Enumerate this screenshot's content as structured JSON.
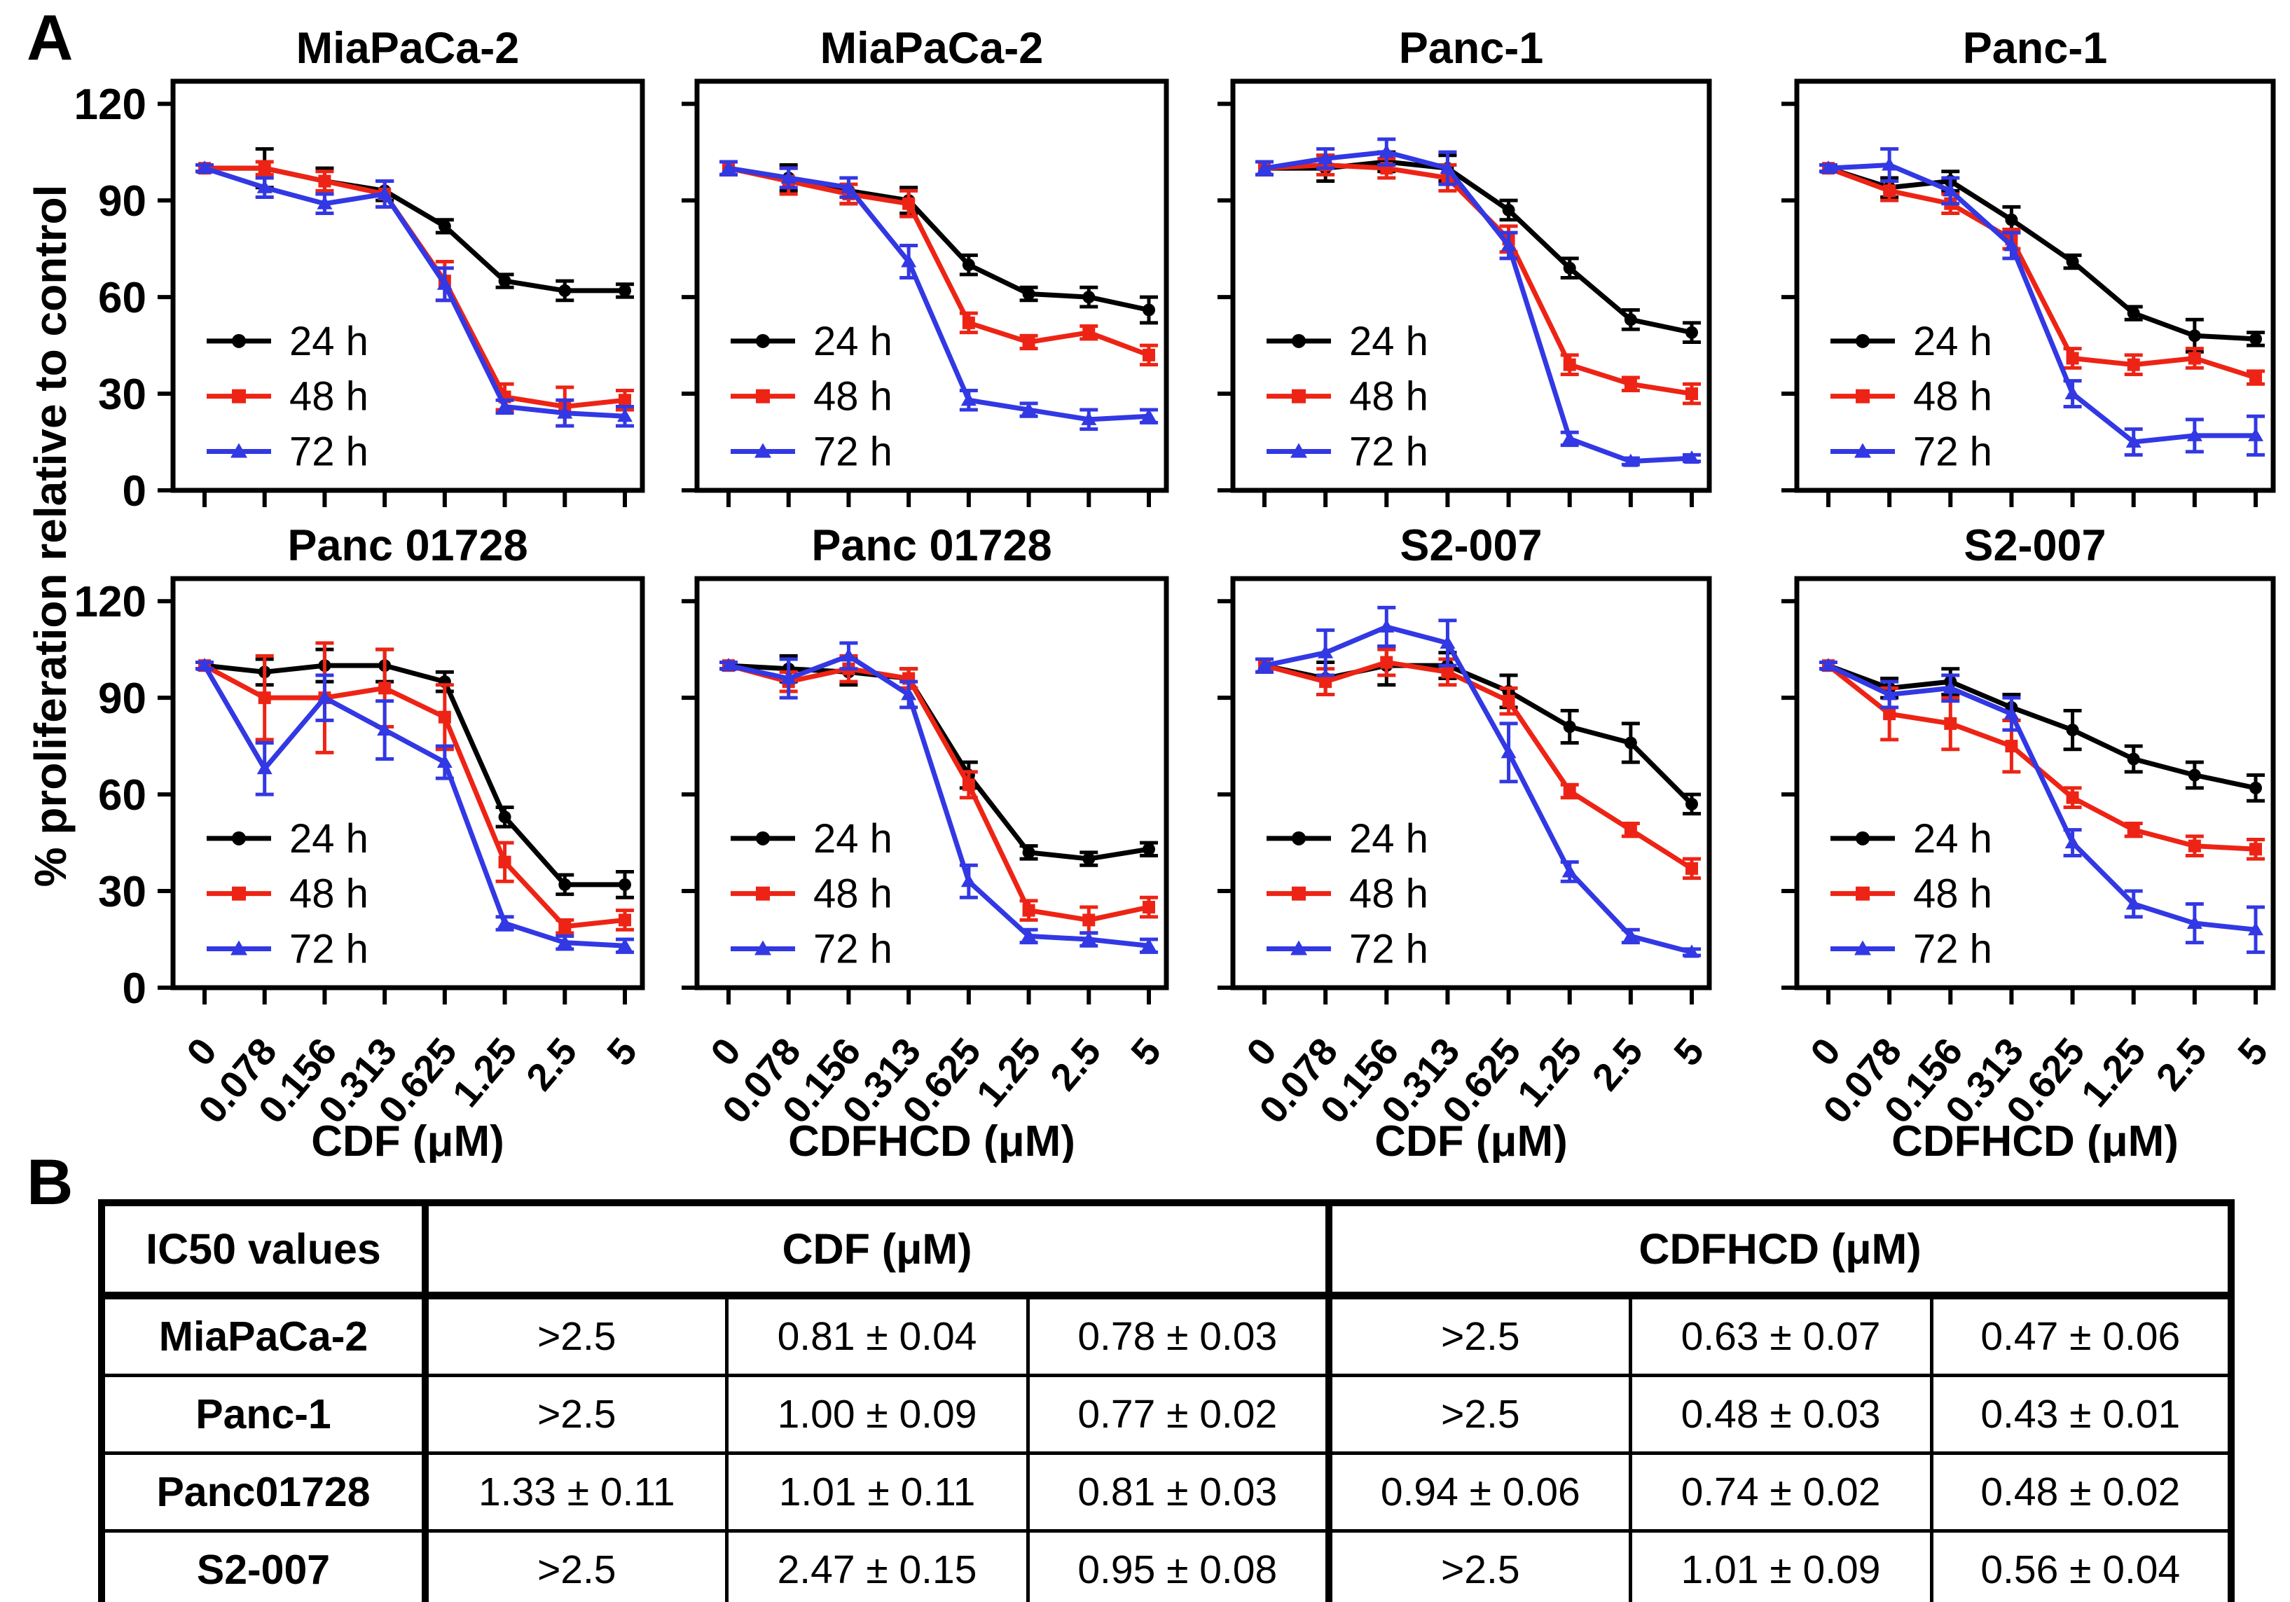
{
  "figure": {
    "panel_a_label": "A",
    "panel_b_label": "B",
    "y_axis_label": "% proliferation relative to control"
  },
  "legend": [
    "24 h",
    "48 h",
    "72 h"
  ],
  "colors": {
    "series_24h": "#000000",
    "series_48h": "#ED2415",
    "series_72h": "#3238E3"
  },
  "chart_data": [
    {
      "type": "line",
      "title": "MiaPaCa-2",
      "xlabel": "CDF (μM)",
      "categories": [
        "0",
        "0.078",
        "0.156",
        "0.313",
        "0.625",
        "1.25",
        "2.5",
        "5"
      ],
      "ylim": [
        0,
        127
      ],
      "yticks": [
        0,
        30,
        60,
        90,
        120
      ],
      "show_ytick_labels": true,
      "show_xtick_labels": false,
      "series": [
        {
          "name": "24 h",
          "color": "#000000",
          "marker": "circle",
          "values": [
            100,
            100,
            96,
            93,
            82,
            65,
            62,
            62
          ],
          "errors": [
            1,
            6,
            4,
            3,
            2,
            2,
            3,
            2
          ]
        },
        {
          "name": "48 h",
          "color": "#ED2415",
          "marker": "square",
          "values": [
            100,
            100,
            96,
            92,
            65,
            29,
            26,
            28
          ],
          "errors": [
            1,
            2,
            3,
            4,
            6,
            4,
            6,
            3
          ]
        },
        {
          "name": "72 h",
          "color": "#3238E3",
          "marker": "triangle",
          "values": [
            100,
            94,
            89,
            92,
            64,
            26,
            24,
            23
          ],
          "errors": [
            1,
            3,
            3,
            4,
            5,
            2,
            4,
            3
          ]
        }
      ]
    },
    {
      "type": "line",
      "title": "MiaPaCa-2",
      "xlabel": "CDFHCD (μM)",
      "categories": [
        "0",
        "0.078",
        "0.156",
        "0.313",
        "0.625",
        "1.25",
        "2.5",
        "5"
      ],
      "ylim": [
        0,
        127
      ],
      "yticks": [
        0,
        30,
        60,
        90,
        120
      ],
      "show_ytick_labels": false,
      "show_xtick_labels": false,
      "series": [
        {
          "name": "24 h",
          "color": "#000000",
          "marker": "circle",
          "values": [
            100,
            97,
            93,
            90,
            70,
            61,
            60,
            56
          ],
          "errors": [
            2,
            4,
            4,
            4,
            3,
            2,
            3,
            4
          ]
        },
        {
          "name": "48 h",
          "color": "#ED2415",
          "marker": "square",
          "values": [
            100,
            96,
            92,
            89,
            52,
            46,
            49,
            42
          ],
          "errors": [
            2,
            4,
            3,
            4,
            3,
            2,
            2,
            3
          ]
        },
        {
          "name": "72 h",
          "color": "#3238E3",
          "marker": "triangle",
          "values": [
            100,
            97,
            94,
            71,
            28,
            25,
            22,
            23
          ],
          "errors": [
            2,
            3,
            3,
            5,
            3,
            2,
            3,
            2
          ]
        }
      ]
    },
    {
      "type": "line",
      "title": "Panc-1",
      "xlabel": "CDF (μM)",
      "categories": [
        "0",
        "0.078",
        "0.156",
        "0.313",
        "0.625",
        "1.25",
        "2.5",
        "5"
      ],
      "ylim": [
        0,
        127
      ],
      "yticks": [
        0,
        30,
        60,
        90,
        120
      ],
      "show_ytick_labels": false,
      "show_xtick_labels": false,
      "series": [
        {
          "name": "24 h",
          "color": "#000000",
          "marker": "circle",
          "values": [
            100,
            100,
            102,
            100,
            87,
            69,
            53,
            49
          ],
          "errors": [
            2,
            4,
            3,
            4,
            3,
            3,
            3,
            3
          ]
        },
        {
          "name": "48 h",
          "color": "#ED2415",
          "marker": "square",
          "values": [
            100,
            101,
            100,
            97,
            78,
            39,
            33,
            30
          ],
          "errors": [
            2,
            3,
            3,
            4,
            4,
            3,
            2,
            3
          ]
        },
        {
          "name": "72 h",
          "color": "#3238E3",
          "marker": "triangle",
          "values": [
            100,
            103,
            105,
            100,
            76,
            16,
            9,
            10
          ],
          "errors": [
            2,
            3,
            4,
            5,
            4,
            2,
            1,
            1
          ]
        }
      ]
    },
    {
      "type": "line",
      "title": "Panc-1",
      "xlabel": "CDFHCD (μM)",
      "categories": [
        "0",
        "0.078",
        "0.156",
        "0.313",
        "0.625",
        "1.25",
        "2.5",
        "5"
      ],
      "ylim": [
        0,
        127
      ],
      "yticks": [
        0,
        30,
        60,
        90,
        120
      ],
      "show_ytick_labels": false,
      "show_xtick_labels": false,
      "series": [
        {
          "name": "24 h",
          "color": "#000000",
          "marker": "circle",
          "values": [
            100,
            94,
            96,
            84,
            71,
            55,
            48,
            47
          ],
          "errors": [
            1,
            3,
            3,
            4,
            2,
            2,
            5,
            2
          ]
        },
        {
          "name": "48 h",
          "color": "#ED2415",
          "marker": "square",
          "values": [
            100,
            93,
            89,
            78,
            41,
            39,
            41,
            35
          ],
          "errors": [
            1,
            3,
            3,
            3,
            3,
            3,
            3,
            2
          ]
        },
        {
          "name": "72 h",
          "color": "#3238E3",
          "marker": "triangle",
          "values": [
            100,
            101,
            93,
            76,
            30,
            15,
            17,
            17
          ],
          "errors": [
            1,
            5,
            4,
            4,
            4,
            4,
            5,
            6
          ]
        }
      ]
    },
    {
      "type": "line",
      "title": "Panc 01728",
      "xlabel": "CDF (μM)",
      "categories": [
        "0",
        "0.078",
        "0.156",
        "0.313",
        "0.625",
        "1.25",
        "2.5",
        "5"
      ],
      "ylim": [
        0,
        127
      ],
      "yticks": [
        0,
        30,
        60,
        90,
        120
      ],
      "show_ytick_labels": true,
      "show_xtick_labels": true,
      "series": [
        {
          "name": "24 h",
          "color": "#000000",
          "marker": "circle",
          "values": [
            100,
            98,
            100,
            100,
            95,
            53,
            32,
            32
          ],
          "errors": [
            1,
            4,
            5,
            5,
            3,
            3,
            3,
            4
          ]
        },
        {
          "name": "48 h",
          "color": "#ED2415",
          "marker": "square",
          "values": [
            100,
            90,
            90,
            93,
            84,
            39,
            19,
            21
          ],
          "errors": [
            1,
            13,
            17,
            12,
            10,
            6,
            2,
            3
          ]
        },
        {
          "name": "72 h",
          "color": "#3238E3",
          "marker": "triangle",
          "values": [
            100,
            68,
            90,
            80,
            70,
            20,
            14,
            13
          ],
          "errors": [
            1,
            8,
            7,
            9,
            5,
            2,
            2,
            2
          ]
        }
      ]
    },
    {
      "type": "line",
      "title": "Panc 01728",
      "xlabel": "CDFHCD (μM)",
      "categories": [
        "0",
        "0.078",
        "0.156",
        "0.313",
        "0.625",
        "1.25",
        "2.5",
        "5"
      ],
      "ylim": [
        0,
        127
      ],
      "yticks": [
        0,
        30,
        60,
        90,
        120
      ],
      "show_ytick_labels": false,
      "show_xtick_labels": true,
      "series": [
        {
          "name": "24 h",
          "color": "#000000",
          "marker": "circle",
          "values": [
            100,
            99,
            98,
            96,
            66,
            42,
            40,
            43
          ],
          "errors": [
            1,
            4,
            4,
            3,
            4,
            2,
            2,
            2
          ]
        },
        {
          "name": "48 h",
          "color": "#ED2415",
          "marker": "square",
          "values": [
            100,
            95,
            99,
            96,
            63,
            24,
            21,
            25
          ],
          "errors": [
            1,
            3,
            4,
            3,
            4,
            3,
            4,
            3
          ]
        },
        {
          "name": "72 h",
          "color": "#3238E3",
          "marker": "triangle",
          "values": [
            100,
            96,
            103,
            91,
            33,
            16,
            15,
            13
          ],
          "errors": [
            1,
            6,
            4,
            4,
            5,
            2,
            2,
            2
          ]
        }
      ]
    },
    {
      "type": "line",
      "title": "S2-007",
      "xlabel": "CDF (μM)",
      "categories": [
        "0",
        "0.078",
        "0.156",
        "0.313",
        "0.625",
        "1.25",
        "2.5",
        "5"
      ],
      "ylim": [
        0,
        127
      ],
      "yticks": [
        0,
        30,
        60,
        90,
        120
      ],
      "show_ytick_labels": false,
      "show_xtick_labels": true,
      "series": [
        {
          "name": "24 h",
          "color": "#000000",
          "marker": "circle",
          "values": [
            100,
            96,
            100,
            100,
            92,
            81,
            76,
            57
          ],
          "errors": [
            2,
            5,
            6,
            4,
            5,
            5,
            6,
            3
          ]
        },
        {
          "name": "48 h",
          "color": "#ED2415",
          "marker": "square",
          "values": [
            100,
            95,
            101,
            98,
            89,
            61,
            49,
            37
          ],
          "errors": [
            2,
            4,
            4,
            4,
            4,
            2,
            2,
            3
          ]
        },
        {
          "name": "72 h",
          "color": "#3238E3",
          "marker": "triangle",
          "values": [
            100,
            104,
            112,
            107,
            73,
            36,
            16,
            11
          ],
          "errors": [
            2,
            7,
            6,
            7,
            9,
            3,
            2,
            1
          ]
        }
      ]
    },
    {
      "type": "line",
      "title": "S2-007",
      "xlabel": "CDFHCD (μM)",
      "categories": [
        "0",
        "0.078",
        "0.156",
        "0.313",
        "0.625",
        "1.25",
        "2.5",
        "5"
      ],
      "ylim": [
        0,
        127
      ],
      "yticks": [
        0,
        30,
        60,
        90,
        120
      ],
      "show_ytick_labels": false,
      "show_xtick_labels": true,
      "series": [
        {
          "name": "24 h",
          "color": "#000000",
          "marker": "circle",
          "values": [
            100,
            93,
            95,
            87,
            80,
            71,
            66,
            62
          ],
          "errors": [
            1,
            3,
            4,
            4,
            6,
            4,
            4,
            4
          ]
        },
        {
          "name": "48 h",
          "color": "#ED2415",
          "marker": "square",
          "values": [
            100,
            85,
            82,
            75,
            59,
            49,
            44,
            43
          ],
          "errors": [
            1,
            8,
            8,
            8,
            3,
            2,
            3,
            3
          ]
        },
        {
          "name": "72 h",
          "color": "#3238E3",
          "marker": "triangle",
          "values": [
            100,
            91,
            93,
            85,
            45,
            26,
            20,
            18
          ],
          "errors": [
            1,
            4,
            4,
            5,
            4,
            4,
            6,
            7
          ]
        }
      ]
    }
  ],
  "table": {
    "corner_header": "IC50 values",
    "group_headers": [
      "CDF (μM)",
      "CDFHCD (μM)"
    ],
    "rows": [
      {
        "label": "MiaPaCa-2",
        "values": [
          ">2.5",
          "0.81 ± 0.04",
          "0.78 ± 0.03",
          ">2.5",
          "0.63 ± 0.07",
          "0.47 ± 0.06"
        ]
      },
      {
        "label": "Panc-1",
        "values": [
          ">2.5",
          "1.00 ± 0.09",
          "0.77 ± 0.02",
          ">2.5",
          "0.48 ± 0.03",
          "0.43 ± 0.01"
        ]
      },
      {
        "label": "Panc01728",
        "values": [
          "1.33 ± 0.11",
          "1.01 ± 0.11",
          "0.81 ± 0.03",
          "0.94 ± 0.06",
          "0.74 ± 0.02",
          "0.48 ± 0.02"
        ]
      },
      {
        "label": "S2-007",
        "values": [
          ">2.5",
          "2.47 ± 0.15",
          "0.95 ± 0.08",
          ">2.5",
          "1.01 ± 0.09",
          "0.56 ± 0.04"
        ]
      }
    ]
  }
}
